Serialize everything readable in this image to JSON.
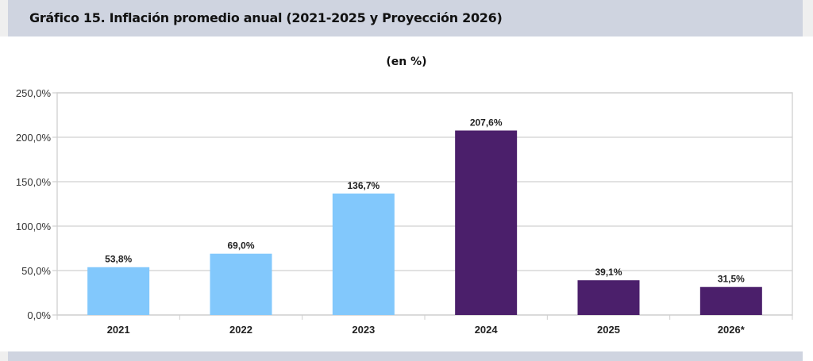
{
  "header": {
    "title": "Gráfico 15. Inflación promedio anual (2021-2025 y Proyección 2026)"
  },
  "colors": {
    "historical": "#82c8fc",
    "recent": "#4b1f6b",
    "header_band": "#cfd4e0",
    "grid": "#d0d0d0"
  },
  "chart_data": {
    "type": "bar",
    "title": "Gráfico 15. Inflación promedio anual (2021-2025 y Proyección 2026)",
    "subtitle": "(en %)",
    "xlabel": "",
    "ylabel": "",
    "categories": [
      "2021",
      "2022",
      "2023",
      "2024",
      "2025",
      "2026*"
    ],
    "values": [
      53.8,
      69.0,
      136.7,
      207.6,
      39.1,
      31.5
    ],
    "data_labels": [
      "53,8%",
      "69,0%",
      "136,7%",
      "207,6%",
      "39,1%",
      "31,5%"
    ],
    "bar_color_group": [
      "historical",
      "historical",
      "historical",
      "recent",
      "recent",
      "recent"
    ],
    "ylim": [
      0,
      250
    ],
    "yticks": [
      0,
      50,
      100,
      150,
      200,
      250
    ],
    "ytick_labels": [
      "0,0%",
      "50,0%",
      "100,0%",
      "150,0%",
      "200,0%",
      "250,0%"
    ],
    "grid": true,
    "legend": "none"
  }
}
